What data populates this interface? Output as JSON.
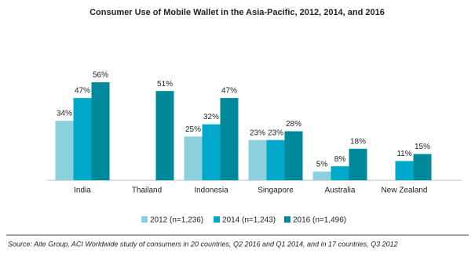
{
  "chart_data": {
    "type": "bar",
    "title": "Consumer Use of Mobile Wallet in the Asia-Pacific, 2012, 2014, and 2016",
    "categories": [
      "India",
      "Thailand",
      "Indonesia",
      "Singapore",
      "Australia",
      "New Zealand"
    ],
    "series": [
      {
        "name": "2012 (n=1,236)",
        "color": "#8dd0dd",
        "values": [
          34,
          null,
          25,
          23,
          5,
          null
        ],
        "value_labels": [
          "34%",
          null,
          "25%",
          "23%",
          "5%",
          null
        ]
      },
      {
        "name": "2014 (n=1,243)",
        "color": "#00a9c9",
        "values": [
          47,
          null,
          32,
          23,
          8,
          11
        ],
        "value_labels": [
          "47%",
          null,
          "32%",
          "23%",
          "8%",
          "11%"
        ]
      },
      {
        "name": "2016 (n=1,496)",
        "color": "#00899a",
        "values": [
          56,
          51,
          47,
          28,
          18,
          15
        ],
        "value_labels": [
          "56%",
          "51%",
          "47%",
          "28%",
          "18%",
          "15%"
        ]
      }
    ],
    "source": "Source: Aite Group, ACI Worldwide study of consumers in 20 countries, Q2 2016 and Q1 2014, and in 17 countries, Q3 2012"
  }
}
